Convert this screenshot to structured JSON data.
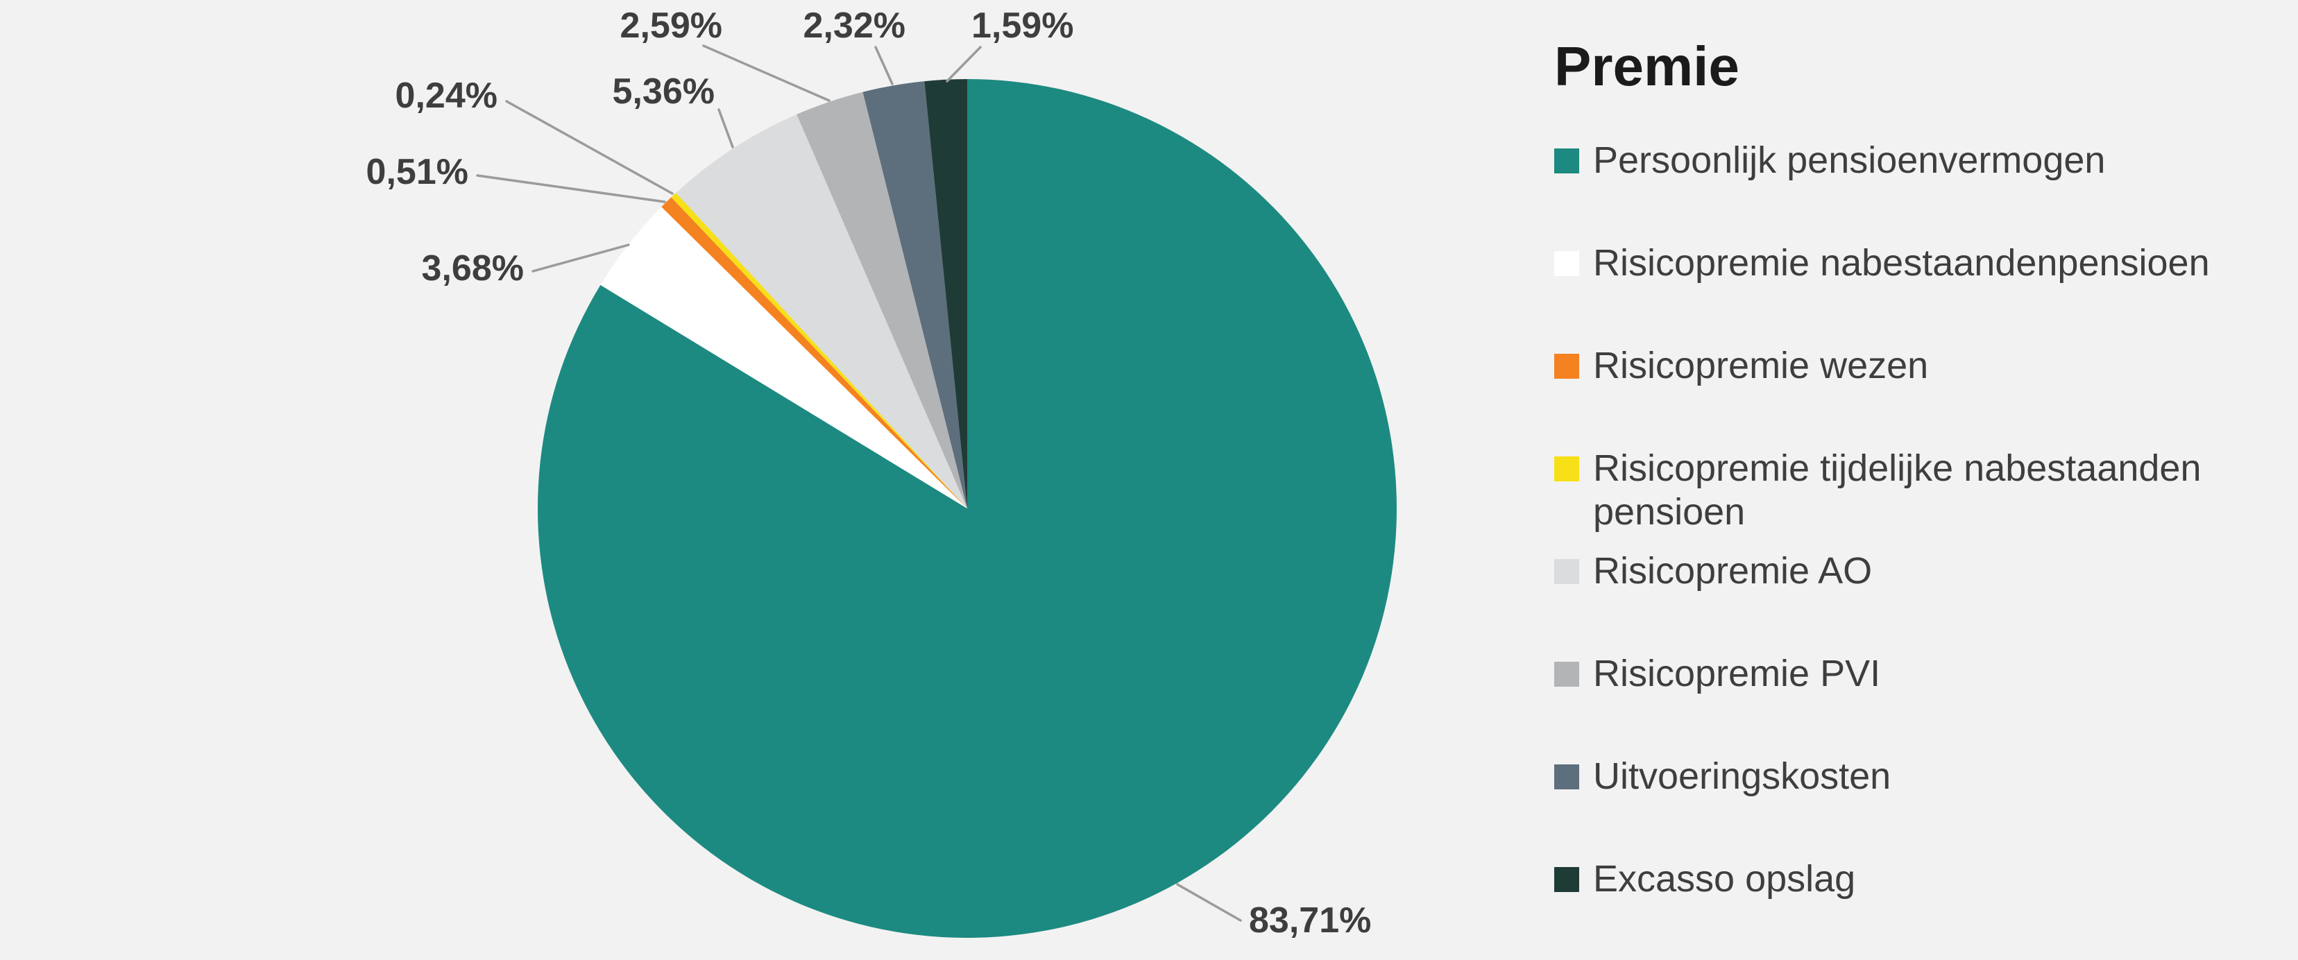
{
  "chart_data": {
    "type": "pie",
    "title": "Premie",
    "legend_position": "right",
    "background": "#f2f2f2",
    "start_angle_deg": 0,
    "direction": "clockwise",
    "slices": [
      {
        "id": "persoonlijk-pensioenvermogen",
        "legend_label": "Persoonlijk pensioenvermogen",
        "value": 83.71,
        "pct_label": "83,71%",
        "color": "#1d8a81"
      },
      {
        "id": "risicopremie-nabestaandenpensioen",
        "legend_label": "Risicopremie nabestaandenpensioen",
        "value": 3.68,
        "pct_label": "3,68%",
        "color": "#ffffff"
      },
      {
        "id": "risicopremie-wezen",
        "legend_label": "Risicopremie wezen",
        "value": 0.51,
        "pct_label": "0,51%",
        "color": "#f58220"
      },
      {
        "id": "risicopremie-tijdelijke-nabestaanden-pensioen",
        "legend_label": "Risicopremie tijdelijke nabestaanden pensioen",
        "value": 0.24,
        "pct_label": "0,24%",
        "color": "#f7e017"
      },
      {
        "id": "risicopremie-ao",
        "legend_label": "Risicopremie AO",
        "value": 5.36,
        "pct_label": "5,36%",
        "color": "#dadcdd"
      },
      {
        "id": "risicopremie-pvi",
        "legend_label": "Risicopremie PVI",
        "value": 2.59,
        "pct_label": "2,59%",
        "color": "#b2b4b5"
      },
      {
        "id": "uitvoeringskosten",
        "legend_label": "Uitvoeringskosten",
        "value": 2.32,
        "pct_label": "2,32%",
        "color": "#5d6e7d"
      },
      {
        "id": "excasso-opslag",
        "legend_label": "Excasso opslag",
        "value": 1.59,
        "pct_label": "1,59%",
        "color": "#1f3b36"
      }
    ]
  }
}
